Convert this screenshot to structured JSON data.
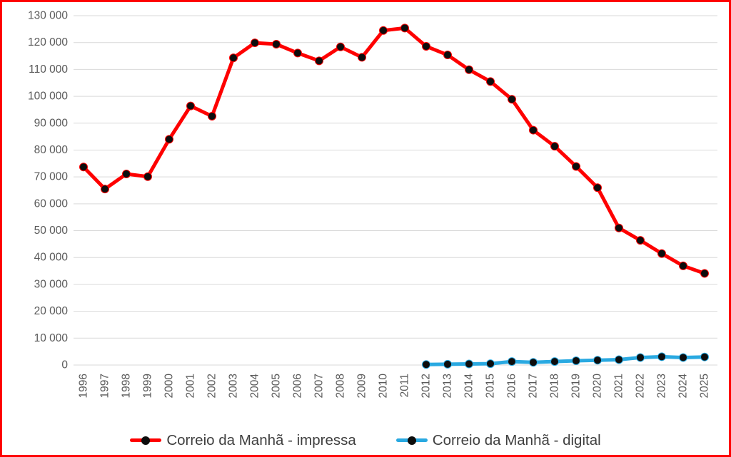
{
  "chart": {
    "border_color": "#FE0000",
    "background": "#FFFFFF"
  },
  "chart_data": {
    "type": "line",
    "title": "",
    "xlabel": "",
    "ylabel": "",
    "x": [
      1996,
      1997,
      1998,
      1999,
      2000,
      2001,
      2002,
      2003,
      2004,
      2005,
      2006,
      2007,
      2008,
      2009,
      2010,
      2011,
      2012,
      2013,
      2014,
      2015,
      2016,
      2017,
      2018,
      2019,
      2020,
      2021,
      2022,
      2023,
      2024,
      2025
    ],
    "series": [
      {
        "name": "Correio da Manhã - impressa",
        "color": "#FE0000",
        "marker_color": "#0D0D0D",
        "values": [
          73700,
          65500,
          71100,
          70100,
          84000,
          96400,
          92600,
          114300,
          119900,
          119400,
          116100,
          113200,
          118400,
          114500,
          124500,
          125400,
          118600,
          115400,
          109900,
          105500,
          98900,
          87400,
          81400,
          73900,
          66000,
          51000,
          46400,
          41500,
          36900,
          34100
        ]
      },
      {
        "name": "Correio da Manhã - digital",
        "color": "#29A9E1",
        "marker_color": "#0D0D0D",
        "values": [
          null,
          null,
          null,
          null,
          null,
          null,
          null,
          null,
          null,
          null,
          null,
          null,
          null,
          null,
          null,
          null,
          200,
          300,
          400,
          500,
          1300,
          1000,
          1300,
          1600,
          1800,
          2000,
          2800,
          3100,
          2800,
          3000
        ]
      }
    ],
    "ylim": [
      0,
      130000
    ],
    "ytick_step": 10000,
    "ytick_labels": [
      "0",
      "10 000",
      "20 000",
      "30 000",
      "40 000",
      "50 000",
      "60 000",
      "70 000",
      "80 000",
      "90 000",
      "100 000",
      "110 000",
      "120 000",
      "130 000"
    ],
    "grid": true,
    "grid_color": "#D9D9D9",
    "axis_label_color": "#595959",
    "legend_position": "bottom",
    "legend_text_color": "#3F3F3F"
  }
}
